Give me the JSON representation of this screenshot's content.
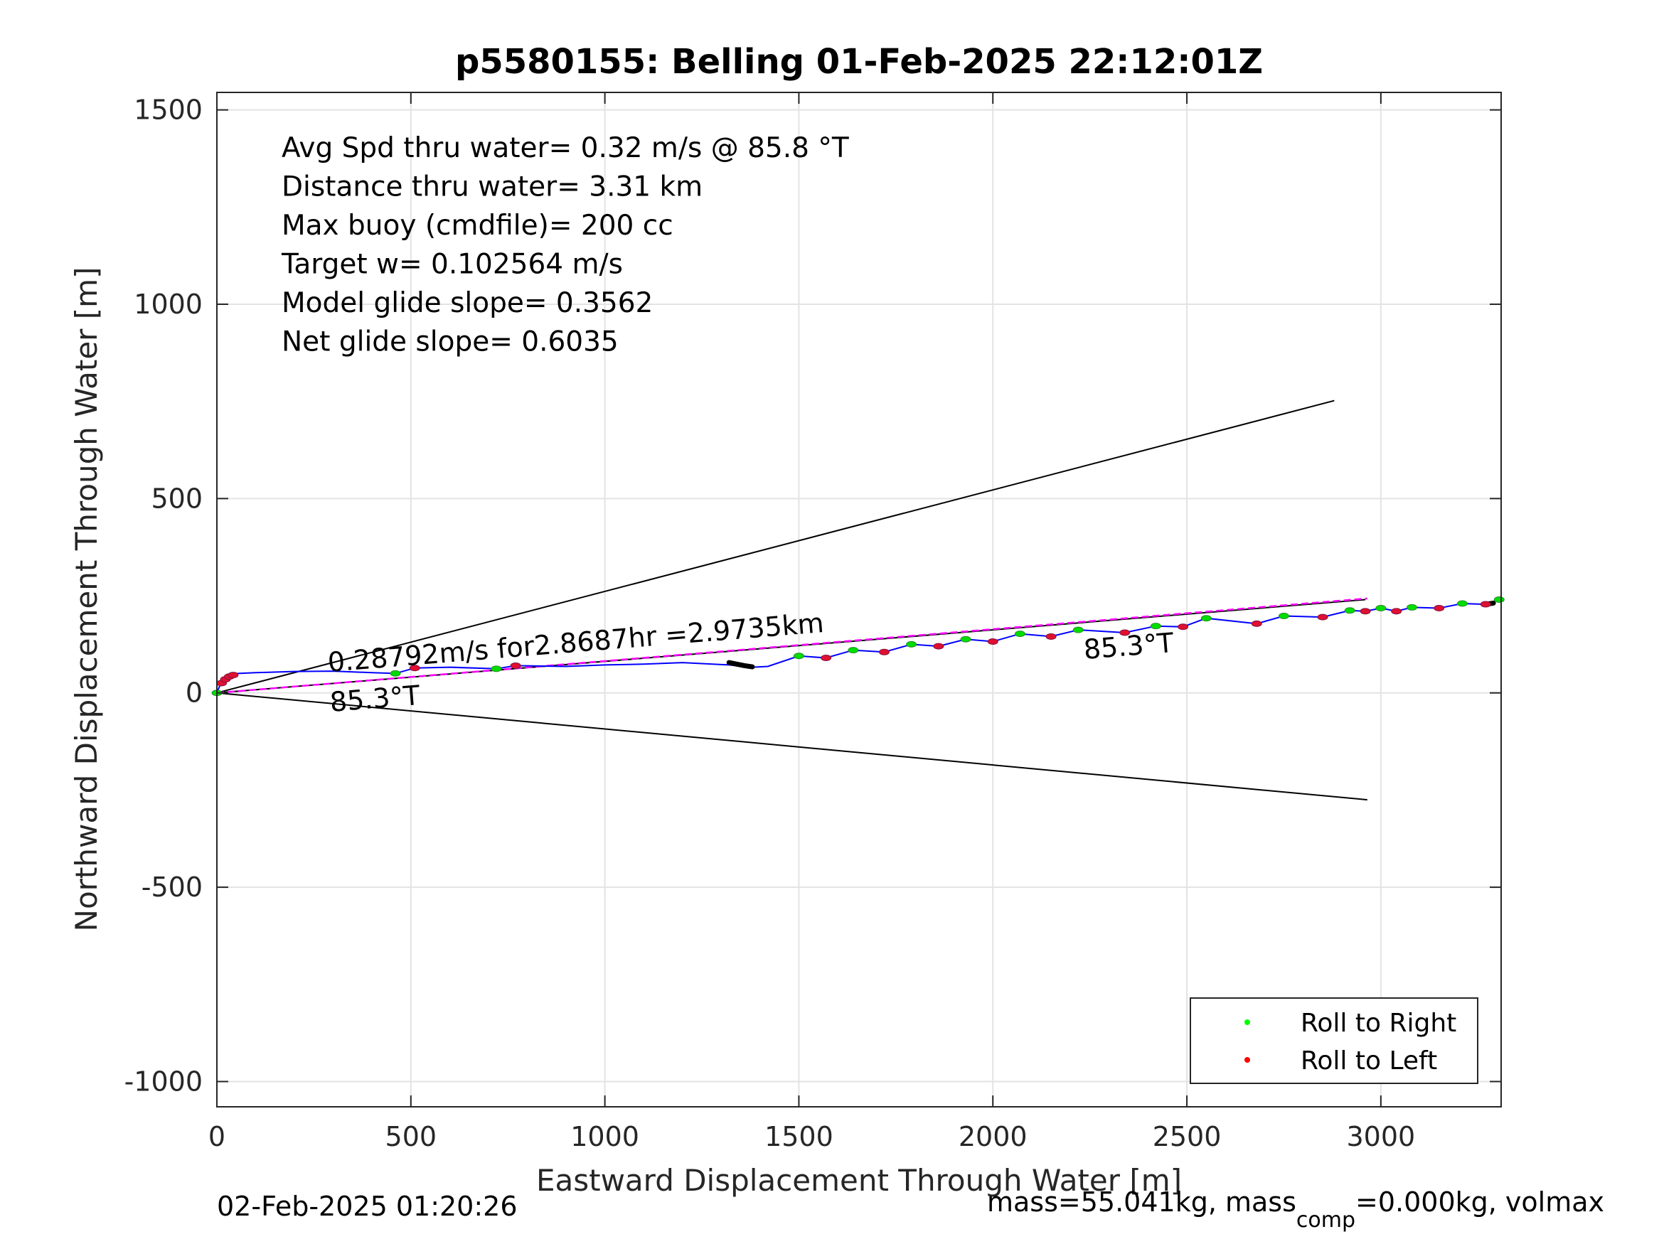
{
  "chart_data": {
    "type": "line",
    "title": "p5580155: Belling 01-Feb-2025 22:12:01Z",
    "xlabel": "Eastward Displacement Through Water [m]",
    "ylabel": "Northward Displacement Through Water [m]",
    "xlim": [
      0,
      3310
    ],
    "ylim": [
      -1065,
      1545
    ],
    "xticks": [
      0,
      500,
      1000,
      1500,
      2000,
      2500,
      3000
    ],
    "yticks": [
      -1000,
      -500,
      0,
      500,
      1000,
      1500
    ],
    "grid": true,
    "legend_position": "bottom-right",
    "stats": [
      "Avg Spd thru water=  0.32 m/s @  85.8 °T",
      "Distance thru water=  3.31 km",
      "Max buoy (cmdfile)= 200 cc",
      "Target w= 0.102564 m/s",
      "Model glide slope= 0.3562",
      "Net glide slope= 0.6035"
    ],
    "annotations": {
      "speed_label": "0.28792m/s for2.8687hr =2.9735km",
      "heading_label_left": "85.3°T",
      "heading_label_right": "85.3°T"
    },
    "reference_lines": [
      {
        "from": [
          0,
          0
        ],
        "to": [
          2880,
          752
        ],
        "color": "#000000"
      },
      {
        "from": [
          0,
          0
        ],
        "to": [
          2960,
          240
        ],
        "color": "#000000"
      },
      {
        "from": [
          0,
          0
        ],
        "to": [
          2965,
          -275
        ],
        "color": "#000000"
      }
    ],
    "net_line": {
      "from": [
        0,
        0
      ],
      "to": [
        2965,
        243
      ],
      "color": "#ff00ff"
    },
    "series": [
      {
        "name": "track",
        "color": "#0000ff",
        "x": [
          0,
          8,
          18,
          30,
          45,
          55,
          100,
          200,
          300,
          400,
          460,
          510,
          600,
          720,
          770,
          900,
          1000,
          1100,
          1200,
          1320,
          1380,
          1420,
          1500,
          1570,
          1640,
          1720,
          1790,
          1860,
          1930,
          2000,
          2070,
          2150,
          2220,
          2340,
          2420,
          2490,
          2550,
          2680,
          2750,
          2850,
          2920,
          2960,
          3000,
          3040,
          3080,
          3150,
          3210,
          3270,
          3300,
          3310
        ],
        "y": [
          0,
          20,
          32,
          42,
          48,
          50,
          52,
          55,
          56,
          52,
          50,
          64,
          66,
          62,
          70,
          68,
          72,
          74,
          78,
          72,
          66,
          68,
          95,
          90,
          110,
          105,
          125,
          120,
          138,
          132,
          152,
          145,
          162,
          155,
          172,
          170,
          192,
          178,
          198,
          195,
          212,
          210,
          218,
          210,
          220,
          218,
          230,
          228,
          238,
          240
        ]
      }
    ],
    "legend": [
      {
        "label": "Roll to Right",
        "color": "#00ff00"
      },
      {
        "label": "Roll to Left",
        "color": "#ff0000"
      }
    ],
    "roll_right_points": {
      "x": [
        0,
        460,
        720,
        1500,
        1640,
        1790,
        1930,
        2070,
        2220,
        2420,
        2550,
        2750,
        2920,
        3000,
        3080,
        3210,
        3305
      ],
      "y": [
        0,
        50,
        62,
        95,
        110,
        125,
        138,
        152,
        162,
        172,
        192,
        198,
        212,
        218,
        220,
        230,
        240
      ]
    },
    "roll_left_points": {
      "x": [
        12,
        22,
        32,
        42,
        510,
        770,
        1570,
        1720,
        1860,
        2000,
        2150,
        2340,
        2490,
        2680,
        2850,
        2960,
        3040,
        3150,
        3270
      ],
      "y": [
        25,
        35,
        42,
        46,
        64,
        70,
        90,
        105,
        120,
        132,
        145,
        155,
        170,
        178,
        195,
        210,
        210,
        218,
        228
      ]
    },
    "bold_segment": {
      "x": [
        1320,
        1340,
        1360,
        1380
      ],
      "y": [
        78,
        74,
        70,
        67
      ]
    },
    "bold_segment_end": {
      "x": [
        3270,
        3290
      ],
      "y": [
        228,
        231
      ]
    }
  },
  "footer": {
    "timestamp": "02-Feb-2025 01:20:26",
    "mass_text_a": "mass=55.041kg, mass",
    "mass_subscript": "comp",
    "mass_text_b": "=0.000kg, volmax"
  }
}
